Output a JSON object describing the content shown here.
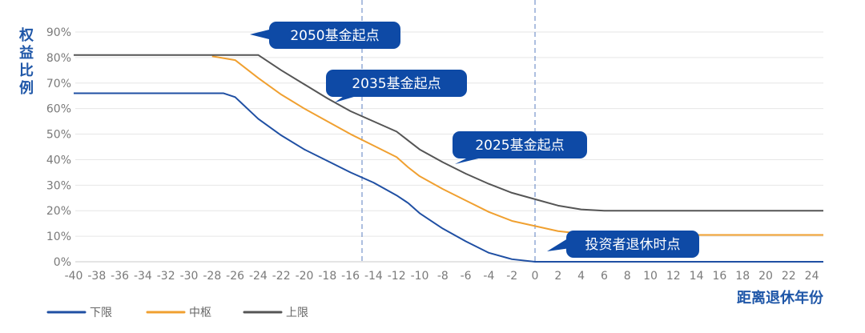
{
  "chart_data": {
    "type": "line",
    "ylabel": "权益比例",
    "xlabel": "距离退休年份",
    "ylim": [
      0,
      90
    ],
    "xlim": [
      -40,
      25
    ],
    "y_ticks": [
      "0%",
      "10%",
      "20%",
      "30%",
      "40%",
      "50%",
      "60%",
      "70%",
      "80%",
      "90%"
    ],
    "x_ticks": [
      "-40",
      "-38",
      "-36",
      "-34",
      "-32",
      "-30",
      "-28",
      "-26",
      "-24",
      "-22",
      "-20",
      "-18",
      "-16",
      "-14",
      "-12",
      "-10",
      "-8",
      "-6",
      "-4",
      "-2",
      "0",
      "2",
      "4",
      "6",
      "8",
      "10",
      "12",
      "14",
      "16",
      "18",
      "20",
      "22",
      "24"
    ],
    "grid": "horizontal",
    "legend_position": "bottom-left",
    "series": [
      {
        "name": "下限",
        "color": "#1f4fa3",
        "points": [
          [
            -40,
            66
          ],
          [
            -27,
            66
          ],
          [
            -26,
            64.5
          ],
          [
            -24,
            56
          ],
          [
            -22,
            49.5
          ],
          [
            -20,
            44
          ],
          [
            -18,
            39.5
          ],
          [
            -16,
            35
          ],
          [
            -14,
            31
          ],
          [
            -12,
            26
          ],
          [
            -11,
            23
          ],
          [
            -10,
            19
          ],
          [
            -8,
            13
          ],
          [
            -6,
            8
          ],
          [
            -4,
            3.5
          ],
          [
            -2,
            1
          ],
          [
            0,
            0
          ],
          [
            25,
            0
          ]
        ]
      },
      {
        "name": "中枢",
        "color": "#f0a030",
        "points": [
          [
            -28,
            80.5
          ],
          [
            -26,
            79
          ],
          [
            -24,
            72
          ],
          [
            -22,
            65.5
          ],
          [
            -20,
            60
          ],
          [
            -18,
            55
          ],
          [
            -16,
            50
          ],
          [
            -14,
            45.5
          ],
          [
            -12,
            41
          ],
          [
            -11,
            37
          ],
          [
            -10,
            33.5
          ],
          [
            -8,
            28.5
          ],
          [
            -6,
            24
          ],
          [
            -4,
            19.5
          ],
          [
            -2,
            16
          ],
          [
            0,
            14
          ],
          [
            2,
            12
          ],
          [
            4,
            11
          ],
          [
            6,
            10.5
          ],
          [
            25,
            10.5
          ]
        ]
      },
      {
        "name": "上限",
        "color": "#555555",
        "points": [
          [
            -40,
            81
          ],
          [
            -24,
            81
          ],
          [
            -22,
            75
          ],
          [
            -20,
            69.5
          ],
          [
            -18,
            64
          ],
          [
            -16,
            59
          ],
          [
            -14,
            55
          ],
          [
            -12,
            51
          ],
          [
            -11,
            47.5
          ],
          [
            -10,
            44
          ],
          [
            -8,
            39
          ],
          [
            -6,
            34.5
          ],
          [
            -4,
            30.5
          ],
          [
            -2,
            27
          ],
          [
            0,
            24.5
          ],
          [
            2,
            22
          ],
          [
            4,
            20.5
          ],
          [
            6,
            20
          ],
          [
            25,
            20
          ]
        ]
      }
    ],
    "reference_lines": [
      {
        "x": -15,
        "color": "#5b7fc0"
      },
      {
        "x": 0,
        "color": "#5b7fc0"
      }
    ],
    "annotations": [
      {
        "text": "2050基金起点"
      },
      {
        "text": "2035基金起点"
      },
      {
        "text": "2025基金起点"
      },
      {
        "text": "投资者退休时点"
      }
    ],
    "callout_color": "#0e4aa6"
  }
}
